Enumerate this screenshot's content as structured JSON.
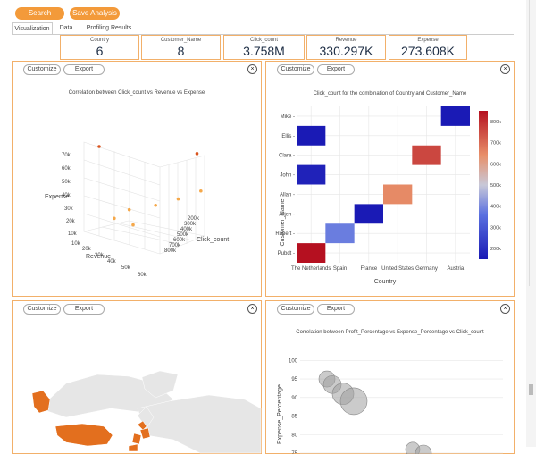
{
  "toolbar": {
    "search_label": "Search",
    "save_label": "Save Analysis"
  },
  "tabs": [
    {
      "label": "Visualization",
      "active": true
    },
    {
      "label": "Data",
      "active": false
    },
    {
      "label": "Profiling Results",
      "active": false
    }
  ],
  "kpis": [
    {
      "label": "Country",
      "value": "6"
    },
    {
      "label": "Customer_Name",
      "value": "8"
    },
    {
      "label": "Click_count",
      "value": "3.758M"
    },
    {
      "label": "Revenue",
      "value": "330.297K"
    },
    {
      "label": "Expense",
      "value": "273.608K"
    }
  ],
  "panel_controls": {
    "customize_label": "Customize",
    "export_label": "Export",
    "close_glyph": "×"
  },
  "panels": {
    "scatter3d": {
      "title": "Correlation between Click_count vs Revenue vs Expense",
      "z_label": "Expense",
      "x_label": "Revenue",
      "y_label": "Click_count",
      "z_ticks": [
        "10k",
        "20k",
        "30k",
        "40k",
        "50k",
        "60k",
        "70k"
      ],
      "x_ticks": [
        "10k",
        "20k",
        "30k",
        "40k",
        "50k",
        "60k"
      ],
      "y_ticks": [
        "200k",
        "300k",
        "400k",
        "500k",
        "600k",
        "700k",
        "800k"
      ]
    },
    "heatmap": {
      "title": "Click_count for the combination of Country and Customer_Name",
      "x_label": "Country",
      "y_label": "Customer_Name",
      "colorbar_ticks": [
        "200k",
        "300k",
        "400k",
        "500k",
        "600k",
        "700k",
        "800k"
      ]
    },
    "map": {
      "title": ""
    },
    "bubble": {
      "title": "Correlation between Profit_Percentage vs Expense_Percentage vs Click_count",
      "y_label": "Expense_Percentage",
      "y_ticks": [
        "75",
        "80",
        "85",
        "90",
        "95",
        "100"
      ]
    }
  },
  "chart_data": [
    {
      "type": "scatter",
      "title": "Correlation between Click_count vs Revenue vs Expense",
      "xlabel": "Revenue",
      "ylabel": "Click_count",
      "zlabel": "Expense",
      "points": [
        {
          "revenue": 20000,
          "click_count": 200000,
          "expense": 70000
        },
        {
          "revenue": 55000,
          "click_count": 800000,
          "expense": 68000
        },
        {
          "revenue": 30000,
          "click_count": 400000,
          "expense": 28000
        },
        {
          "revenue": 40000,
          "click_count": 550000,
          "expense": 32000
        },
        {
          "revenue": 50000,
          "click_count": 650000,
          "expense": 38000
        },
        {
          "revenue": 25000,
          "click_count": 300000,
          "expense": 22000
        },
        {
          "revenue": 35000,
          "click_count": 350000,
          "expense": 20000
        },
        {
          "revenue": 60000,
          "click_count": 750000,
          "expense": 45000
        }
      ]
    },
    {
      "type": "heatmap",
      "title": "Click_count for the combination of Country and Customer_Name",
      "xlabel": "Country",
      "ylabel": "Customer_Name",
      "x": [
        "The Netherlands",
        "Spain",
        "France",
        "United States",
        "Germany",
        "Austria"
      ],
      "y": [
        "Mike",
        "Ellis",
        "Clara",
        "John",
        "Allan",
        "Arjen",
        "Robert",
        "Pubdt"
      ],
      "cells": [
        {
          "x": "Austria",
          "y": "Mike",
          "value": 150000
        },
        {
          "x": "The Netherlands",
          "y": "Ellis",
          "value": 100000
        },
        {
          "x": "Germany",
          "y": "Clara",
          "value": 760000
        },
        {
          "x": "The Netherlands",
          "y": "John",
          "value": 170000
        },
        {
          "x": "United States",
          "y": "Allan",
          "value": 650000
        },
        {
          "x": "France",
          "y": "Arjen",
          "value": 110000
        },
        {
          "x": "Spain",
          "y": "Robert",
          "value": 380000
        },
        {
          "x": "The Netherlands",
          "y": "Pubdt",
          "value": 850000
        }
      ],
      "colorbar_range": [
        150000,
        850000
      ]
    },
    {
      "type": "scatter",
      "title": "Correlation between Profit_Percentage vs Expense_Percentage vs Click_count",
      "ylabel": "Expense_Percentage",
      "ylim": [
        75,
        102
      ],
      "points": [
        {
          "x": 0.1,
          "y": 95,
          "size": 9
        },
        {
          "x": 0.15,
          "y": 93.5,
          "size": 10
        },
        {
          "x": 0.25,
          "y": 91,
          "size": 12
        },
        {
          "x": 0.35,
          "y": 89,
          "size": 15
        },
        {
          "x": 0.9,
          "y": 76,
          "size": 8
        },
        {
          "x": 1.0,
          "y": 75,
          "size": 9
        }
      ]
    }
  ]
}
